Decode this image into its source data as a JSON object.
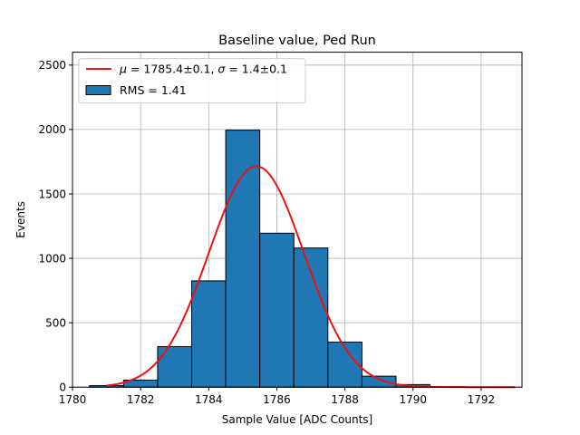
{
  "chart_data": {
    "type": "bar",
    "title": "Baseline value, Ped Run",
    "xlabel": "Sample Value [ADC Counts]",
    "ylabel": "Events",
    "xlim": [
      1780,
      1793.2
    ],
    "ylim": [
      0,
      2600
    ],
    "xticks": [
      1780,
      1782,
      1784,
      1786,
      1788,
      1790,
      1792
    ],
    "yticks": [
      0,
      500,
      1000,
      1500,
      2000,
      2500
    ],
    "grid": true,
    "legend_position": "top-left",
    "bins": [
      {
        "x0": 1780.5,
        "x1": 1781.5,
        "count": 12
      },
      {
        "x0": 1781.5,
        "x1": 1782.5,
        "count": 55
      },
      {
        "x0": 1782.5,
        "x1": 1783.5,
        "count": 315
      },
      {
        "x0": 1783.5,
        "x1": 1784.5,
        "count": 825
      },
      {
        "x0": 1784.5,
        "x1": 1785.5,
        "count": 1995
      },
      {
        "x0": 1785.5,
        "x1": 1786.5,
        "count": 1195
      },
      {
        "x0": 1786.5,
        "x1": 1787.5,
        "count": 1080
      },
      {
        "x0": 1787.5,
        "x1": 1788.5,
        "count": 350
      },
      {
        "x0": 1788.5,
        "x1": 1789.5,
        "count": 85
      },
      {
        "x0": 1789.5,
        "x1": 1790.5,
        "count": 20
      },
      {
        "x0": 1790.5,
        "x1": 1791.5,
        "count": 3
      }
    ],
    "fit": {
      "type": "gaussian",
      "mu": 1785.4,
      "sigma": 1.4,
      "amplitude": 1715,
      "x_range": [
        1781,
        1793
      ]
    },
    "legend": {
      "fit_label_mu": "μ",
      "fit_label_mu_value": " = 1785.4±0.1, ",
      "fit_label_sigma": "σ",
      "fit_label_sigma_value": " = 1.4±0.1",
      "hist_label": "RMS = 1.41"
    },
    "colors": {
      "bar_fill": "#1f77b4",
      "bar_edge": "#000000",
      "fit_line": "#ee1111",
      "grid": "#b0b0b0"
    }
  }
}
